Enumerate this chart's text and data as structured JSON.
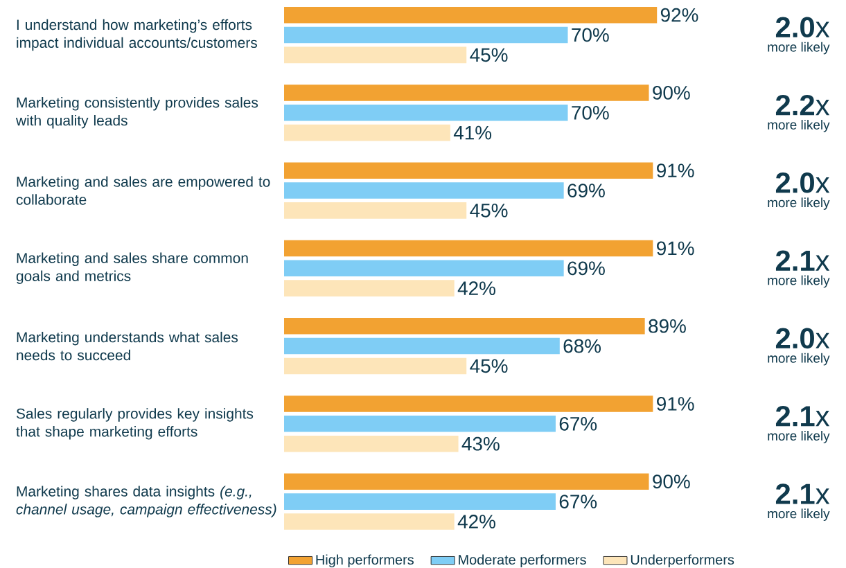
{
  "chart_data": {
    "type": "bar",
    "orientation": "horizontal",
    "categories": [
      "I understand how marketing’s efforts impact individual accounts/customers",
      "Marketing consistently provides sales with quality leads",
      "Marketing and sales are empowered to collaborate",
      "Marketing and sales share common goals and metrics",
      "Marketing understands what sales needs to succeed",
      "Sales regularly provides key insights that shape marketing efforts",
      "Marketing shares data insights *(e.g., channel usage, campaign effectiveness)*"
    ],
    "series": [
      {
        "name": "High performers",
        "color": "#f2a232",
        "values": [
          92,
          90,
          91,
          91,
          89,
          91,
          90
        ],
        "value_labels": [
          "92%",
          "90%",
          "91%",
          "91%",
          "89%",
          "91%",
          "90%"
        ]
      },
      {
        "name": "Moderate performers",
        "color": "#7fcdf5",
        "values": [
          70,
          70,
          69,
          69,
          68,
          67,
          67
        ],
        "value_labels": [
          "70%",
          "70%",
          "69%",
          "69%",
          "68%",
          "67%",
          "67%"
        ]
      },
      {
        "name": "Underperformers",
        "color": "#fde5b9",
        "values": [
          45,
          41,
          45,
          42,
          45,
          43,
          42
        ],
        "value_labels": [
          "45%",
          "41%",
          "45%",
          "42%",
          "45%",
          "43%",
          "42%"
        ]
      }
    ],
    "legend": "bottom",
    "annotations": [
      "**2.0**x",
      "more likely",
      "**2.2**x",
      "more likely",
      "**2.0**x",
      "more likely",
      "**2.1**x",
      "more likely",
      "**2.0**x",
      "more likely",
      "**2.1**x",
      "more likely",
      "**2.1**x",
      "more likely"
    ]
  }
}
